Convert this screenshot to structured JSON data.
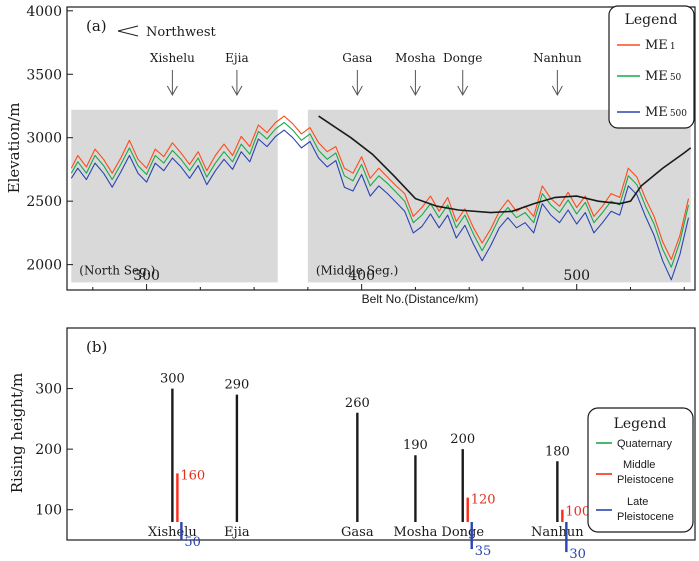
{
  "colors": {
    "me1": "#ff4a1a",
    "me50": "#1aa84a",
    "me500": "#2a44b0",
    "ridge": "#1a1a1a",
    "band": "#d9d9d9",
    "quaternary": "#1aa84a",
    "middle": "#ff2a1a",
    "late": "#2a44b0",
    "valRed": "#e0301e",
    "valBlue": "#2a44b0"
  },
  "chart_data": [
    {
      "type": "line",
      "panel_label": "(a)",
      "direction_label": "Northwest",
      "xlabel": "Belt No.(Distance/km)",
      "ylabel": "Elevation/m",
      "xlim": [
        263,
        555
      ],
      "ylim": [
        1800,
        4030
      ],
      "xticks": [
        300,
        400,
        500
      ],
      "xtick_labels": [
        "300",
        "400",
        "500"
      ],
      "yticks": [
        2000,
        2500,
        3000,
        3500,
        4000
      ],
      "ytick_labels": [
        "2000",
        "2500",
        "3000",
        "3500",
        "4000"
      ],
      "segments": [
        {
          "label": "(North Seg.)",
          "x_range": [
            265,
            361
          ],
          "y_range": [
            1860,
            3220
          ]
        },
        {
          "label": "(Middle Seg.)",
          "x_range": [
            375,
            553
          ],
          "y_range": [
            1860,
            3220
          ]
        }
      ],
      "stations": [
        {
          "name": "Xishelu",
          "x": 312
        },
        {
          "name": "Ejia",
          "x": 342
        },
        {
          "name": "Gasa",
          "x": 398
        },
        {
          "name": "Mosha",
          "x": 425
        },
        {
          "name": "Donge",
          "x": 447
        },
        {
          "name": "Nanhun",
          "x": 491
        }
      ],
      "legend": {
        "title": "Legend",
        "entries": [
          {
            "name": "ME",
            "sub": "1"
          },
          {
            "name": "ME",
            "sub": "50"
          },
          {
            "name": "ME",
            "sub": "500"
          }
        ]
      },
      "envelope": {
        "x": [
          380,
          395,
          405,
          415,
          425,
          435,
          445,
          460,
          470,
          480,
          490,
          500,
          510,
          520,
          525,
          530,
          540,
          550,
          553
        ],
        "y": [
          3170,
          3000,
          2870,
          2700,
          2520,
          2460,
          2430,
          2410,
          2420,
          2480,
          2530,
          2540,
          2500,
          2480,
          2500,
          2620,
          2760,
          2880,
          2920
        ]
      },
      "series": [
        {
          "name": "ME1",
          "x": [
            265,
            268,
            272,
            276,
            280,
            284,
            288,
            292,
            296,
            300,
            304,
            308,
            312,
            316,
            320,
            324,
            328,
            332,
            336,
            340,
            344,
            348,
            352,
            356,
            360,
            364,
            368,
            372,
            376,
            380,
            384,
            388,
            392,
            396,
            400,
            404,
            408,
            412,
            416,
            420,
            424,
            428,
            432,
            436,
            440,
            444,
            448,
            452,
            456,
            460,
            464,
            468,
            472,
            476,
            480,
            484,
            488,
            492,
            496,
            500,
            504,
            508,
            512,
            516,
            520,
            524,
            528,
            532,
            536,
            540,
            544,
            548,
            552
          ],
          "y": [
            2760,
            2860,
            2770,
            2910,
            2830,
            2720,
            2840,
            2980,
            2830,
            2760,
            2910,
            2850,
            2960,
            2880,
            2790,
            2890,
            2740,
            2860,
            2950,
            2860,
            3010,
            2930,
            3100,
            3040,
            3120,
            3170,
            3110,
            3030,
            3080,
            2960,
            2890,
            2930,
            2760,
            2720,
            2850,
            2680,
            2760,
            2690,
            2620,
            2560,
            2380,
            2450,
            2540,
            2420,
            2530,
            2340,
            2440,
            2290,
            2170,
            2280,
            2420,
            2510,
            2420,
            2460,
            2380,
            2620,
            2520,
            2460,
            2570,
            2450,
            2540,
            2380,
            2460,
            2560,
            2530,
            2760,
            2690,
            2520,
            2380,
            2180,
            2040,
            2230,
            2520
          ]
        },
        {
          "name": "ME50",
          "x": [
            265,
            268,
            272,
            276,
            280,
            284,
            288,
            292,
            296,
            300,
            304,
            308,
            312,
            316,
            320,
            324,
            328,
            332,
            336,
            340,
            344,
            348,
            352,
            356,
            360,
            364,
            368,
            372,
            376,
            380,
            384,
            388,
            392,
            396,
            400,
            404,
            408,
            412,
            416,
            420,
            424,
            428,
            432,
            436,
            440,
            444,
            448,
            452,
            456,
            460,
            464,
            468,
            472,
            476,
            480,
            484,
            488,
            492,
            496,
            500,
            504,
            508,
            512,
            516,
            520,
            524,
            528,
            532,
            536,
            540,
            544,
            548,
            552
          ],
          "y": [
            2720,
            2810,
            2720,
            2860,
            2780,
            2670,
            2790,
            2920,
            2780,
            2710,
            2860,
            2800,
            2900,
            2830,
            2740,
            2840,
            2690,
            2800,
            2890,
            2810,
            2950,
            2870,
            3050,
            2990,
            3070,
            3120,
            3060,
            2980,
            3030,
            2900,
            2830,
            2880,
            2700,
            2660,
            2790,
            2620,
            2700,
            2640,
            2570,
            2500,
            2330,
            2390,
            2480,
            2370,
            2470,
            2290,
            2390,
            2240,
            2110,
            2230,
            2370,
            2450,
            2370,
            2410,
            2330,
            2560,
            2470,
            2410,
            2510,
            2400,
            2490,
            2330,
            2410,
            2500,
            2470,
            2700,
            2630,
            2460,
            2320,
            2120,
            1980,
            2180,
            2470
          ]
        },
        {
          "name": "ME500",
          "x": [
            265,
            268,
            272,
            276,
            280,
            284,
            288,
            292,
            296,
            300,
            304,
            308,
            312,
            316,
            320,
            324,
            328,
            332,
            336,
            340,
            344,
            348,
            352,
            356,
            360,
            364,
            368,
            372,
            376,
            380,
            384,
            388,
            392,
            396,
            400,
            404,
            408,
            412,
            416,
            420,
            424,
            428,
            432,
            436,
            440,
            444,
            448,
            452,
            456,
            460,
            464,
            468,
            472,
            476,
            480,
            484,
            488,
            492,
            496,
            500,
            504,
            508,
            512,
            516,
            520,
            524,
            528,
            532,
            536,
            540,
            544,
            548,
            552
          ],
          "y": [
            2680,
            2760,
            2670,
            2800,
            2720,
            2610,
            2730,
            2860,
            2720,
            2650,
            2800,
            2740,
            2840,
            2770,
            2680,
            2780,
            2630,
            2740,
            2830,
            2750,
            2890,
            2810,
            2990,
            2930,
            3010,
            3060,
            3000,
            2920,
            2970,
            2840,
            2770,
            2820,
            2610,
            2580,
            2710,
            2540,
            2620,
            2560,
            2490,
            2420,
            2250,
            2300,
            2400,
            2290,
            2390,
            2210,
            2310,
            2160,
            2030,
            2150,
            2290,
            2370,
            2290,
            2330,
            2250,
            2480,
            2390,
            2330,
            2430,
            2320,
            2410,
            2250,
            2330,
            2420,
            2390,
            2620,
            2550,
            2380,
            2230,
            2030,
            1880,
            2080,
            2370
          ]
        }
      ]
    },
    {
      "type": "bar",
      "panel_label": "(b)",
      "ylabel": "Rising height/m",
      "ylim": [
        50,
        400
      ],
      "yticks": [
        100,
        200,
        300
      ],
      "ytick_labels": [
        "100",
        "200",
        "300"
      ],
      "categories": [
        "Xishelu",
        "Ejia",
        "Gasa",
        "Mosha",
        "Donge",
        "Nanhun"
      ],
      "category_x_km": [
        312,
        342,
        398,
        425,
        447,
        491
      ],
      "series": [
        {
          "name": "Quaternary",
          "values": [
            300,
            290,
            260,
            190,
            200,
            180
          ]
        },
        {
          "name": "Middle Pleistocene",
          "values": [
            160,
            null,
            null,
            null,
            120,
            100
          ]
        },
        {
          "name": "Late Pleistocene",
          "values": [
            50,
            null,
            null,
            null,
            35,
            30
          ]
        }
      ],
      "legend": {
        "title": "Legend",
        "entries": [
          {
            "lines": [
              "Quaternary"
            ]
          },
          {
            "lines": [
              "Middle",
              "Pleistocene"
            ]
          },
          {
            "lines": [
              "Late",
              "Pleistocene"
            ]
          }
        ]
      }
    }
  ]
}
